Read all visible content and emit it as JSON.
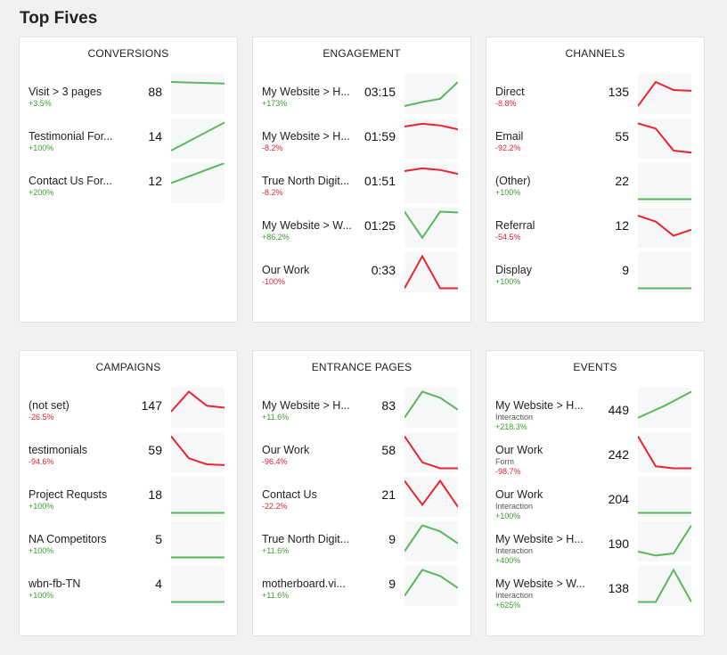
{
  "page": {
    "title": "Top Fives"
  },
  "colors": {
    "positive": "#5cb85c",
    "negative": "#e8252f"
  },
  "cards": [
    {
      "title": "CONVERSIONS",
      "rows": [
        {
          "name": "Visit > 3 pages",
          "sub": "",
          "change": "+3.5%",
          "value": "88",
          "trend": "positive",
          "spark": [
            0.2,
            0.22,
            0.24
          ]
        },
        {
          "name": "Testimonial For...",
          "sub": "",
          "change": "+100%",
          "value": "14",
          "trend": "positive",
          "spark": [
            0.8,
            0.1
          ]
        },
        {
          "name": "Contact Us For...",
          "sub": "",
          "change": "+200%",
          "value": "12",
          "trend": "positive",
          "spark": [
            0.5,
            0.0
          ]
        }
      ]
    },
    {
      "title": "ENGAGEMENT",
      "rows": [
        {
          "name": "My Website > H...",
          "sub": "",
          "change": "+173%",
          "value": "03:15",
          "trend": "positive",
          "spark": [
            0.8,
            0.7,
            0.62,
            0.2
          ]
        },
        {
          "name": "My Website > H...",
          "sub": "",
          "change": "-8.2%",
          "value": "01:59",
          "trend": "negative",
          "spark": [
            0.2,
            0.13,
            0.17,
            0.27
          ]
        },
        {
          "name": "True North Digit...",
          "sub": "",
          "change": "-8.2%",
          "value": "01:51",
          "trend": "negative",
          "spark": [
            0.2,
            0.13,
            0.17,
            0.27
          ]
        },
        {
          "name": "My Website > W...",
          "sub": "",
          "change": "+86.2%",
          "value": "01:25",
          "trend": "positive",
          "spark": [
            0.1,
            0.75,
            0.1,
            0.12
          ]
        },
        {
          "name": "Our Work",
          "sub": "",
          "change": "-100%",
          "value": "0:33",
          "trend": "negative",
          "spark": [
            0.9,
            0.1,
            0.9,
            0.9
          ]
        }
      ]
    },
    {
      "title": "CHANNELS",
      "rows": [
        {
          "name": "Direct",
          "sub": "",
          "change": "-8.8%",
          "value": "135",
          "trend": "negative",
          "spark": [
            0.8,
            0.2,
            0.4,
            0.42
          ]
        },
        {
          "name": "Email",
          "sub": "",
          "change": "-92.2%",
          "value": "55",
          "trend": "negative",
          "spark": [
            0.12,
            0.25,
            0.8,
            0.85
          ]
        },
        {
          "name": "(Other)",
          "sub": "",
          "change": "+100%",
          "value": "22",
          "trend": "positive",
          "spark": [
            0.9,
            0.9,
            0.9,
            0.9
          ]
        },
        {
          "name": "Referral",
          "sub": "",
          "change": "-54.5%",
          "value": "12",
          "trend": "negative",
          "spark": [
            0.2,
            0.35,
            0.7,
            0.55
          ]
        },
        {
          "name": "Display",
          "sub": "",
          "change": "+100%",
          "value": "9",
          "trend": "positive",
          "spark": [
            0.9,
            0.9,
            0.9,
            0.9
          ]
        }
      ]
    },
    {
      "title": "CAMPAIGNS",
      "rows": [
        {
          "name": "(not set)",
          "sub": "",
          "change": "-26.5%",
          "value": "147",
          "trend": "negative",
          "spark": [
            0.6,
            0.1,
            0.45,
            0.5
          ]
        },
        {
          "name": "testimonials",
          "sub": "",
          "change": "-94.6%",
          "value": "59",
          "trend": "negative",
          "spark": [
            0.1,
            0.65,
            0.8,
            0.82
          ]
        },
        {
          "name": "Project Requsts",
          "sub": "",
          "change": "+100%",
          "value": "18",
          "trend": "positive",
          "spark": [
            0.9,
            0.9,
            0.9,
            0.9
          ]
        },
        {
          "name": "NA Competitors",
          "sub": "",
          "change": "+100%",
          "value": "5",
          "trend": "positive",
          "spark": [
            0.9,
            0.9,
            0.9,
            0.9
          ]
        },
        {
          "name": "wbn-fb-TN",
          "sub": "",
          "change": "+100%",
          "value": "4",
          "trend": "positive",
          "spark": [
            0.9,
            0.9,
            0.9,
            0.9
          ]
        }
      ]
    },
    {
      "title": "ENTRANCE PAGES",
      "rows": [
        {
          "name": "My Website > H...",
          "sub": "",
          "change": "+11.6%",
          "value": "83",
          "trend": "positive",
          "spark": [
            0.75,
            0.1,
            0.25,
            0.55
          ]
        },
        {
          "name": "Our Work",
          "sub": "",
          "change": "-96.4%",
          "value": "58",
          "trend": "negative",
          "spark": [
            0.1,
            0.75,
            0.9,
            0.9
          ]
        },
        {
          "name": "Contact Us",
          "sub": "",
          "change": "-22.2%",
          "value": "21",
          "trend": "negative",
          "spark": [
            0.1,
            0.7,
            0.1,
            0.75
          ]
        },
        {
          "name": "True North Digit...",
          "sub": "",
          "change": "+11.6%",
          "value": "9",
          "trend": "positive",
          "spark": [
            0.75,
            0.1,
            0.25,
            0.55
          ]
        },
        {
          "name": "motherboard.vi...",
          "sub": "",
          "change": "+11.6%",
          "value": "9",
          "trend": "positive",
          "spark": [
            0.75,
            0.1,
            0.25,
            0.55
          ]
        }
      ]
    },
    {
      "title": "EVENTS",
      "rows": [
        {
          "name": "My Website > H...",
          "sub": "Interaction",
          "change": "+218.3%",
          "value": "449",
          "trend": "positive",
          "spark": [
            0.75,
            0.45,
            0.1
          ]
        },
        {
          "name": "Our Work",
          "sub": "Form",
          "change": "-98.7%",
          "value": "242",
          "trend": "negative",
          "spark": [
            0.1,
            0.85,
            0.9,
            0.9
          ]
        },
        {
          "name": "Our Work",
          "sub": "Interaction",
          "change": "+100%",
          "value": "204",
          "trend": "positive",
          "spark": [
            0.9,
            0.9,
            0.9,
            0.9
          ]
        },
        {
          "name": "My Website > H...",
          "sub": "Interaction",
          "change": "+400%",
          "value": "190",
          "trend": "positive",
          "spark": [
            0.75,
            0.85,
            0.8,
            0.1
          ]
        },
        {
          "name": "My Website > W...",
          "sub": "Interaction",
          "change": "+625%",
          "value": "138",
          "trend": "positive",
          "spark": [
            0.9,
            0.9,
            0.1,
            0.9
          ]
        }
      ]
    }
  ]
}
